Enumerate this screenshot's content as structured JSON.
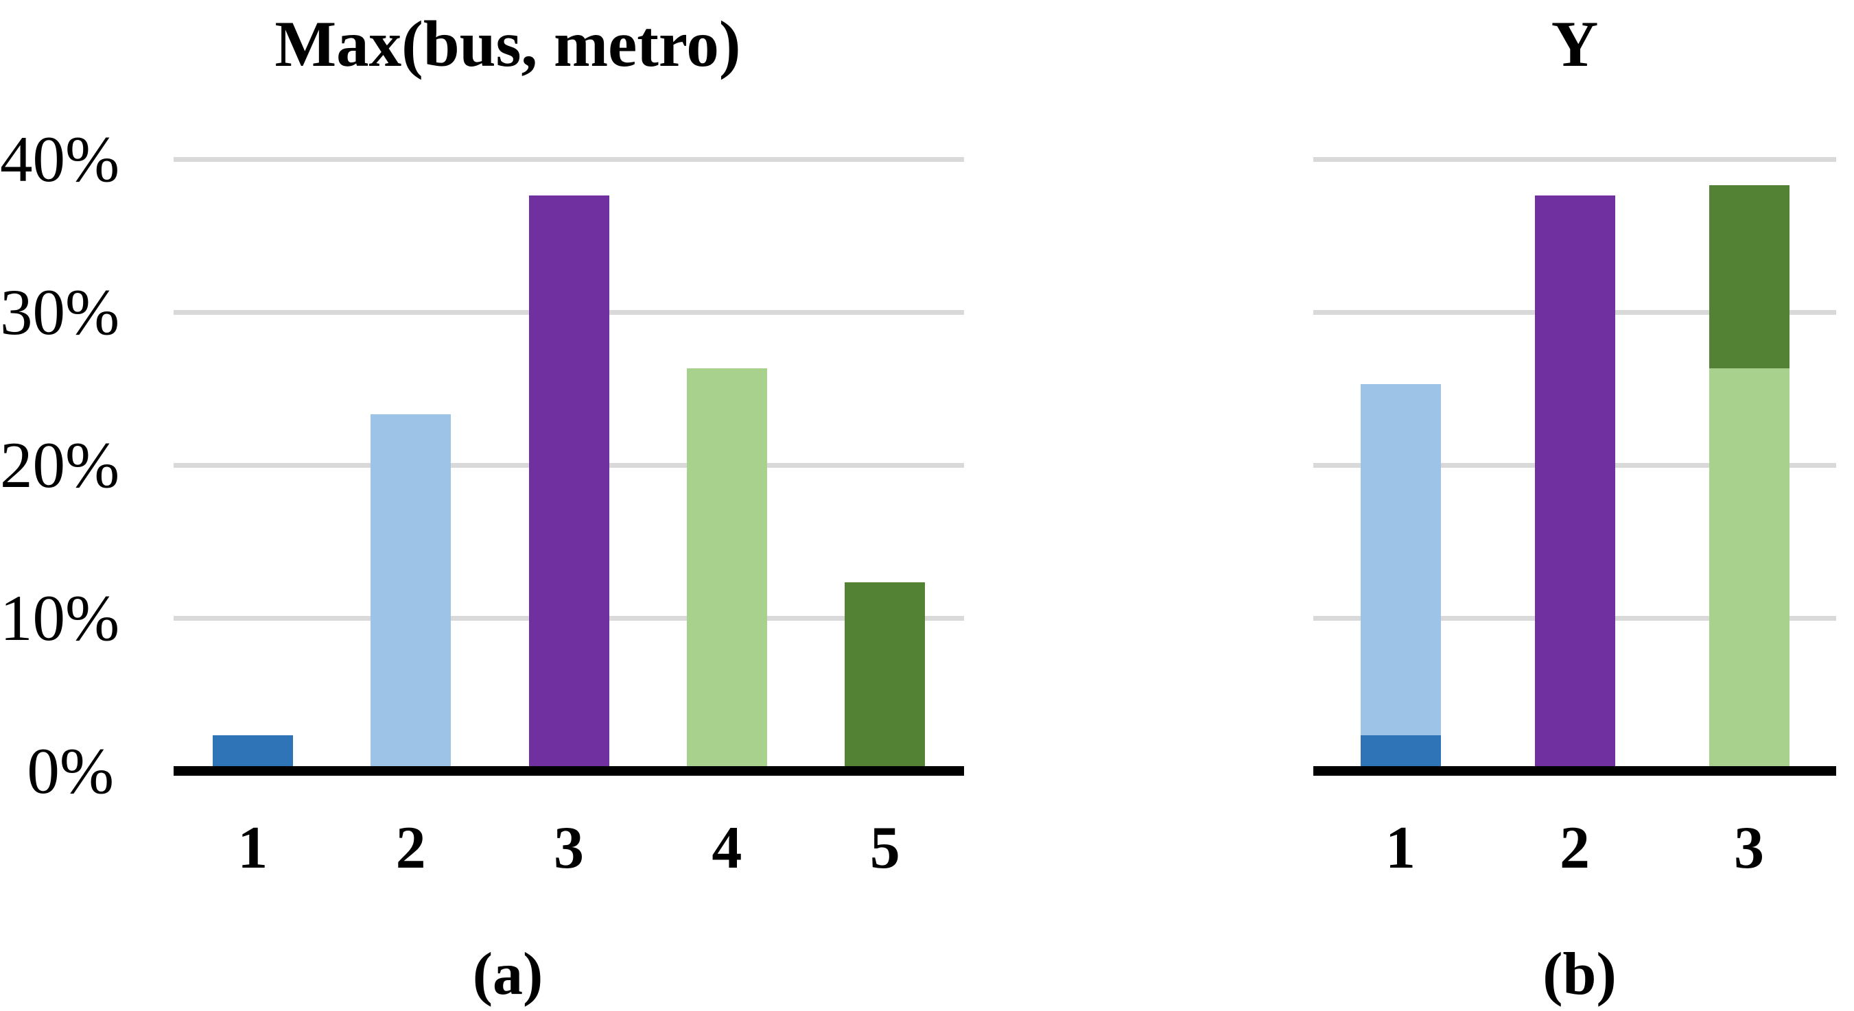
{
  "figure": {
    "kind": "two-panel bar figure",
    "background": "#FFFFFF"
  },
  "colors": {
    "dark_blue": "#2E74B6",
    "light_blue": "#9DC3E6",
    "purple": "#7030A0",
    "light_green": "#A9D18E",
    "dark_green": "#538234",
    "gridline": "#D9D9D9",
    "axis": "#000000",
    "text": "#000000"
  },
  "chart_data": [
    {
      "id": "a",
      "type": "bar",
      "title": "Max(bus, metro)",
      "caption": "(a)",
      "categories": [
        "1",
        "2",
        "3",
        "4",
        "5"
      ],
      "values": [
        2,
        23,
        37.3,
        26,
        12
      ],
      "bar_colors": [
        "dark_blue",
        "light_blue",
        "purple",
        "light_green",
        "dark_green"
      ],
      "ytick_labels": [
        "40%",
        "30%",
        "20%",
        "10%",
        "0%"
      ],
      "ytick_values": [
        40,
        30,
        20,
        10,
        0
      ],
      "ylim": [
        0,
        40
      ],
      "grid": true,
      "legend": "none",
      "xlabel": "",
      "ylabel": ""
    },
    {
      "id": "b",
      "type": "stacked_bar",
      "title": "Y",
      "caption": "(b)",
      "categories": [
        "1",
        "2",
        "3"
      ],
      "stacks": [
        [
          {
            "color": "dark_blue",
            "value": 2
          },
          {
            "color": "light_blue",
            "value": 23
          }
        ],
        [
          {
            "color": "purple",
            "value": 37.3
          }
        ],
        [
          {
            "color": "light_green",
            "value": 26
          },
          {
            "color": "dark_green",
            "value": 12
          }
        ]
      ],
      "ytick_labels": [],
      "ytick_values": [
        40,
        30,
        20,
        10,
        0
      ],
      "ylim": [
        0,
        40
      ],
      "grid": true,
      "legend": "none",
      "xlabel": "",
      "ylabel": ""
    }
  ]
}
